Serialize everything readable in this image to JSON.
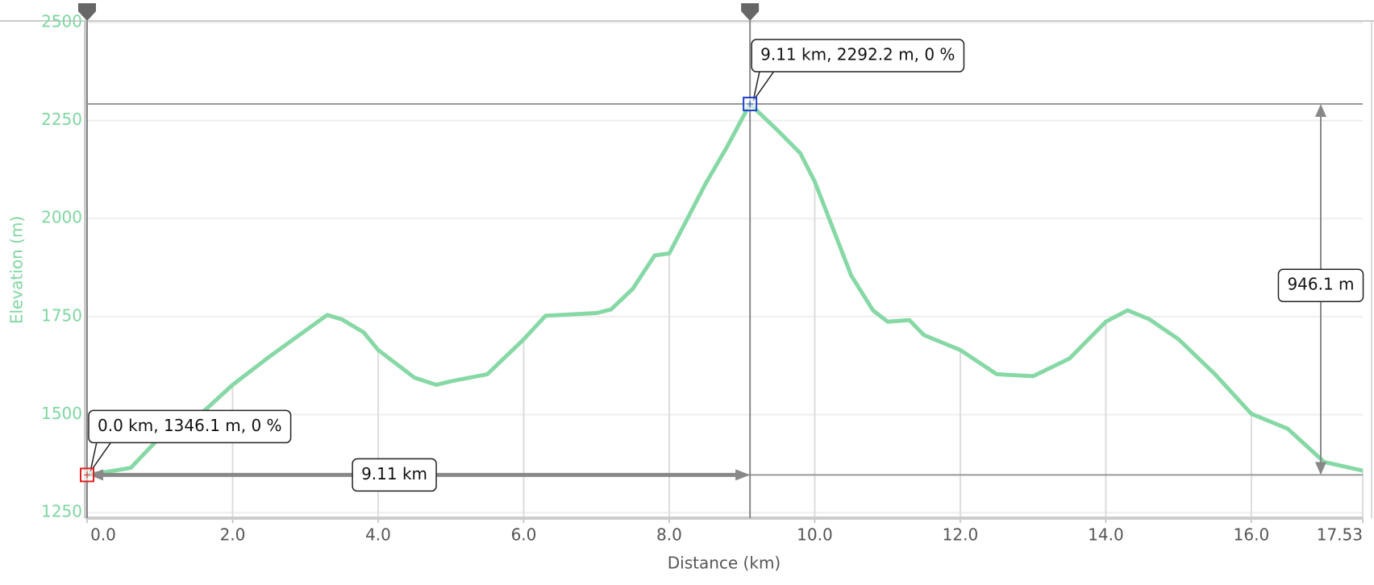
{
  "chart_data": {
    "type": "line",
    "x_label": "Distance (km)",
    "y_label": "Elevation (m)",
    "color": "#7fd6a0",
    "x": [
      0,
      0.3,
      0.6,
      1.0,
      1.5,
      2.0,
      2.5,
      3.0,
      3.3,
      3.5,
      3.8,
      4.0,
      4.5,
      4.8,
      5.0,
      5.5,
      6.0,
      6.3,
      7.0,
      7.2,
      7.5,
      7.8,
      8.0,
      8.2,
      8.5,
      8.8,
      9.11,
      9.5,
      9.8,
      10.0,
      10.5,
      10.8,
      11.0,
      11.3,
      11.5,
      12.0,
      12.5,
      13.0,
      13.5,
      14.0,
      14.3,
      14.6,
      15.0,
      15.5,
      16.0,
      16.5,
      17.0,
      17.53
    ],
    "values": [
      1346.1,
      1355,
      1364,
      1442,
      1491,
      1576,
      1647,
      1714,
      1754,
      1743,
      1710,
      1665,
      1594,
      1576,
      1585,
      1603,
      1692,
      1752,
      1759,
      1768,
      1821,
      1906,
      1911,
      1982,
      2089,
      2185,
      2292.2,
      2223,
      2167,
      2094,
      1855,
      1766,
      1737,
      1741,
      1703,
      1665,
      1603,
      1598,
      1643,
      1737,
      1766,
      1743,
      1692,
      1603,
      1502,
      1464,
      1379,
      1357
    ],
    "xlim": [
      0,
      17.53
    ],
    "ylim": [
      1236,
      2504
    ],
    "xticks": [
      {
        "value": 0,
        "label": "0.0"
      },
      {
        "value": 2,
        "label": "2.0"
      },
      {
        "value": 4,
        "label": "4.0"
      },
      {
        "value": 6,
        "label": "6.0"
      },
      {
        "value": 8,
        "label": "8.0"
      },
      {
        "value": 10,
        "label": "10.0"
      },
      {
        "value": 12,
        "label": "12.0"
      },
      {
        "value": 14,
        "label": "14.0"
      },
      {
        "value": 16,
        "label": "16.0"
      },
      17.53
    ],
    "yticks": [
      1250,
      1500,
      1750,
      2000,
      2250,
      2500
    ],
    "grid": true,
    "markers": [
      {
        "x": 0,
        "y": 1346.1,
        "label": "0.0 km, 1346.1 m, 0 %",
        "color": "#e02020"
      },
      {
        "x": 9.11,
        "y": 2292.2,
        "label": "9.11 km, 2292.2 m, 0 %",
        "color": "#2040d0"
      }
    ],
    "distance_label": "9.11 km",
    "height_label": "946.1 m"
  }
}
